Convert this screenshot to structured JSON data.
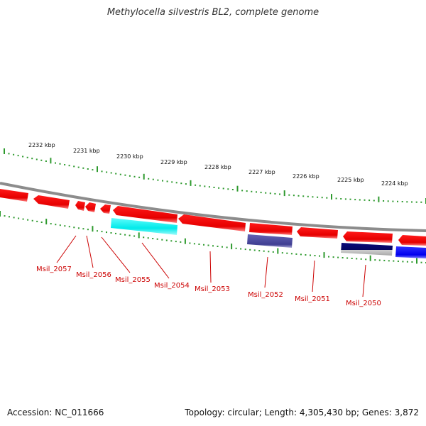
{
  "title": "Methylocella silvestris BL2, complete genome",
  "footer": {
    "accession": "Accession: NC_011666",
    "summary": "Topology: circular; Length: 4,305,430 bp; Genes: 3,872"
  },
  "colors": {
    "background": "#ffffff",
    "backbone": "#8c8c8c",
    "ticks": "#2e9a2e",
    "gene_forward": "#ff1a1a",
    "gene_cyan": "#11f0f0",
    "gene_slate": "#4b4a9e",
    "gene_navy": "#0a0a7a",
    "gene_blue": "#1010ff",
    "gene_gray": "#bdbdbd",
    "label": "#cc0000"
  },
  "scale_labels": [
    "2232 kbp",
    "2231 kbp",
    "2230 kbp",
    "2229 kbp",
    "2228 kbp",
    "2227 kbp",
    "2226 kbp",
    "2225 kbp",
    "2224 kbp"
  ],
  "gene_labels": [
    "Msil_2057",
    "Msil_2056",
    "Msil_2055",
    "Msil_2054",
    "Msil_2053",
    "Msil_2052",
    "Msil_2051",
    "Msil_2050"
  ]
}
